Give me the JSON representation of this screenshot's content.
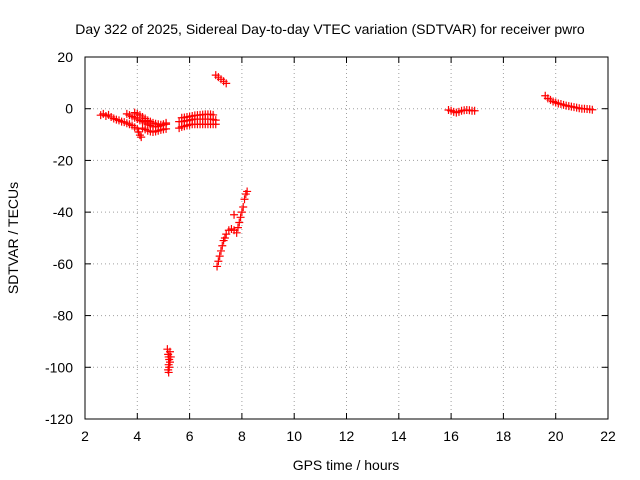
{
  "chart_data": {
    "type": "scatter",
    "title": "Day 322 of 2025, Sidereal Day-to-day VTEC variation (SDTVAR) for receiver pwro",
    "xlabel": "GPS time / hours",
    "ylabel": "SDTVAR / TECUs",
    "xlim": [
      2,
      22
    ],
    "ylim": [
      -120,
      20
    ],
    "xticks": [
      2,
      4,
      6,
      8,
      10,
      12,
      14,
      16,
      18,
      20,
      22
    ],
    "yticks": [
      -120,
      -100,
      -80,
      -60,
      -40,
      -20,
      0,
      20
    ],
    "grid": true,
    "marker": "plus",
    "color": "#ff0000",
    "series": [
      {
        "name": "",
        "points": [
          [
            2.6,
            -2.5
          ],
          [
            2.7,
            -2.0
          ],
          [
            2.8,
            -2.8
          ],
          [
            2.9,
            -2.4
          ],
          [
            3.0,
            -3.2
          ],
          [
            3.1,
            -3.8
          ],
          [
            3.2,
            -4.2
          ],
          [
            3.3,
            -4.5
          ],
          [
            3.4,
            -5.0
          ],
          [
            3.5,
            -5.2
          ],
          [
            3.6,
            -5.6
          ],
          [
            3.7,
            -6.0
          ],
          [
            3.8,
            -6.5
          ],
          [
            3.9,
            -7.2
          ],
          [
            4.0,
            -7.8
          ],
          [
            4.05,
            -9.0
          ],
          [
            4.1,
            -10.2
          ],
          [
            4.15,
            -11.0
          ],
          [
            3.6,
            -2.0
          ],
          [
            3.7,
            -2.5
          ],
          [
            3.8,
            -3.0
          ],
          [
            3.9,
            -3.5
          ],
          [
            4.0,
            -4.0
          ],
          [
            4.1,
            -4.5
          ],
          [
            4.2,
            -5.0
          ],
          [
            4.3,
            -5.5
          ],
          [
            4.4,
            -6.0
          ],
          [
            4.5,
            -6.5
          ],
          [
            4.6,
            -7.0
          ],
          [
            4.7,
            -7.0
          ],
          [
            4.8,
            -6.8
          ],
          [
            4.9,
            -6.5
          ],
          [
            5.0,
            -6.2
          ],
          [
            5.1,
            -6.0
          ],
          [
            3.9,
            -1.5
          ],
          [
            4.0,
            -2.0
          ],
          [
            4.1,
            -2.5
          ],
          [
            4.2,
            -3.2
          ],
          [
            4.3,
            -3.8
          ],
          [
            4.4,
            -4.5
          ],
          [
            4.5,
            -5.0
          ],
          [
            4.6,
            -5.5
          ],
          [
            4.7,
            -5.8
          ],
          [
            4.8,
            -6.0
          ],
          [
            4.9,
            -6.2
          ],
          [
            5.0,
            -6.0
          ],
          [
            5.1,
            -5.5
          ],
          [
            4.2,
            -7.5
          ],
          [
            4.3,
            -8.0
          ],
          [
            4.4,
            -8.5
          ],
          [
            4.5,
            -8.8
          ],
          [
            4.6,
            -9.0
          ],
          [
            4.7,
            -8.8
          ],
          [
            4.8,
            -8.5
          ],
          [
            4.9,
            -8.2
          ],
          [
            5.0,
            -8.0
          ],
          [
            5.1,
            -7.8
          ],
          [
            5.15,
            -93
          ],
          [
            5.18,
            -95
          ],
          [
            5.2,
            -96
          ],
          [
            5.22,
            -97
          ],
          [
            5.25,
            -98
          ],
          [
            5.2,
            -99
          ],
          [
            5.22,
            -100
          ],
          [
            5.18,
            -101
          ],
          [
            5.2,
            -102
          ],
          [
            5.25,
            -94
          ],
          [
            5.28,
            -96
          ],
          [
            5.6,
            -7.5
          ],
          [
            5.7,
            -7.0
          ],
          [
            5.8,
            -6.8
          ],
          [
            5.9,
            -6.5
          ],
          [
            6.0,
            -6.2
          ],
          [
            6.1,
            -6.0
          ],
          [
            6.2,
            -6.0
          ],
          [
            6.3,
            -6.0
          ],
          [
            6.4,
            -6.0
          ],
          [
            6.5,
            -6.0
          ],
          [
            6.6,
            -6.0
          ],
          [
            6.7,
            -6.0
          ],
          [
            6.8,
            -6.0
          ],
          [
            6.9,
            -6.0
          ],
          [
            7.0,
            -6.0
          ],
          [
            5.6,
            -5.0
          ],
          [
            5.7,
            -5.0
          ],
          [
            5.8,
            -4.8
          ],
          [
            5.9,
            -4.6
          ],
          [
            6.0,
            -4.4
          ],
          [
            6.1,
            -4.2
          ],
          [
            6.2,
            -4.0
          ],
          [
            6.3,
            -4.0
          ],
          [
            6.4,
            -4.0
          ],
          [
            6.5,
            -4.0
          ],
          [
            6.6,
            -4.0
          ],
          [
            6.7,
            -4.0
          ],
          [
            6.8,
            -4.0
          ],
          [
            6.9,
            -4.2
          ],
          [
            7.0,
            -4.4
          ],
          [
            5.7,
            -3.5
          ],
          [
            5.8,
            -3.4
          ],
          [
            5.9,
            -3.2
          ],
          [
            6.0,
            -3.0
          ],
          [
            6.1,
            -2.8
          ],
          [
            6.2,
            -2.6
          ],
          [
            6.3,
            -2.5
          ],
          [
            6.4,
            -2.4
          ],
          [
            6.5,
            -2.3
          ],
          [
            6.6,
            -2.2
          ],
          [
            6.7,
            -2.2
          ],
          [
            6.8,
            -2.2
          ],
          [
            6.9,
            -2.4
          ],
          [
            7.0,
            13
          ],
          [
            7.1,
            12.2
          ],
          [
            7.2,
            11.4
          ],
          [
            7.3,
            10.6
          ],
          [
            7.4,
            9.8
          ],
          [
            7.05,
            -61
          ],
          [
            7.1,
            -59
          ],
          [
            7.15,
            -57
          ],
          [
            7.2,
            -55
          ],
          [
            7.25,
            -53
          ],
          [
            7.3,
            -51
          ],
          [
            7.35,
            -50
          ],
          [
            7.4,
            -48.5
          ],
          [
            7.5,
            -47
          ],
          [
            7.6,
            -46.5
          ],
          [
            7.7,
            -47
          ],
          [
            7.7,
            -41
          ],
          [
            7.8,
            -48
          ],
          [
            7.85,
            -46
          ],
          [
            7.9,
            -44
          ],
          [
            7.95,
            -42
          ],
          [
            8.0,
            -40
          ],
          [
            8.05,
            -38
          ],
          [
            8.1,
            -35
          ],
          [
            8.15,
            -33
          ],
          [
            8.2,
            -32
          ],
          [
            15.9,
            -0.5
          ],
          [
            16.0,
            -0.8
          ],
          [
            16.1,
            -1.2
          ],
          [
            16.2,
            -1.5
          ],
          [
            16.3,
            -1.2
          ],
          [
            16.4,
            -0.8
          ],
          [
            16.5,
            -0.6
          ],
          [
            16.6,
            -0.5
          ],
          [
            16.7,
            -0.6
          ],
          [
            16.8,
            -0.8
          ],
          [
            16.9,
            -0.8
          ],
          [
            19.6,
            5.0
          ],
          [
            19.7,
            4.0
          ],
          [
            19.8,
            3.4
          ],
          [
            19.9,
            2.8
          ],
          [
            20.0,
            2.4
          ],
          [
            20.1,
            2.0
          ],
          [
            20.2,
            1.8
          ],
          [
            20.3,
            1.5
          ],
          [
            20.4,
            1.2
          ],
          [
            20.5,
            1.0
          ],
          [
            20.6,
            0.8
          ],
          [
            20.7,
            0.6
          ],
          [
            20.8,
            0.4
          ],
          [
            20.9,
            0.2
          ],
          [
            21.0,
            0.0
          ],
          [
            21.1,
            0.0
          ],
          [
            21.2,
            -0.1
          ],
          [
            21.3,
            -0.2
          ],
          [
            21.4,
            -0.4
          ]
        ]
      }
    ]
  }
}
